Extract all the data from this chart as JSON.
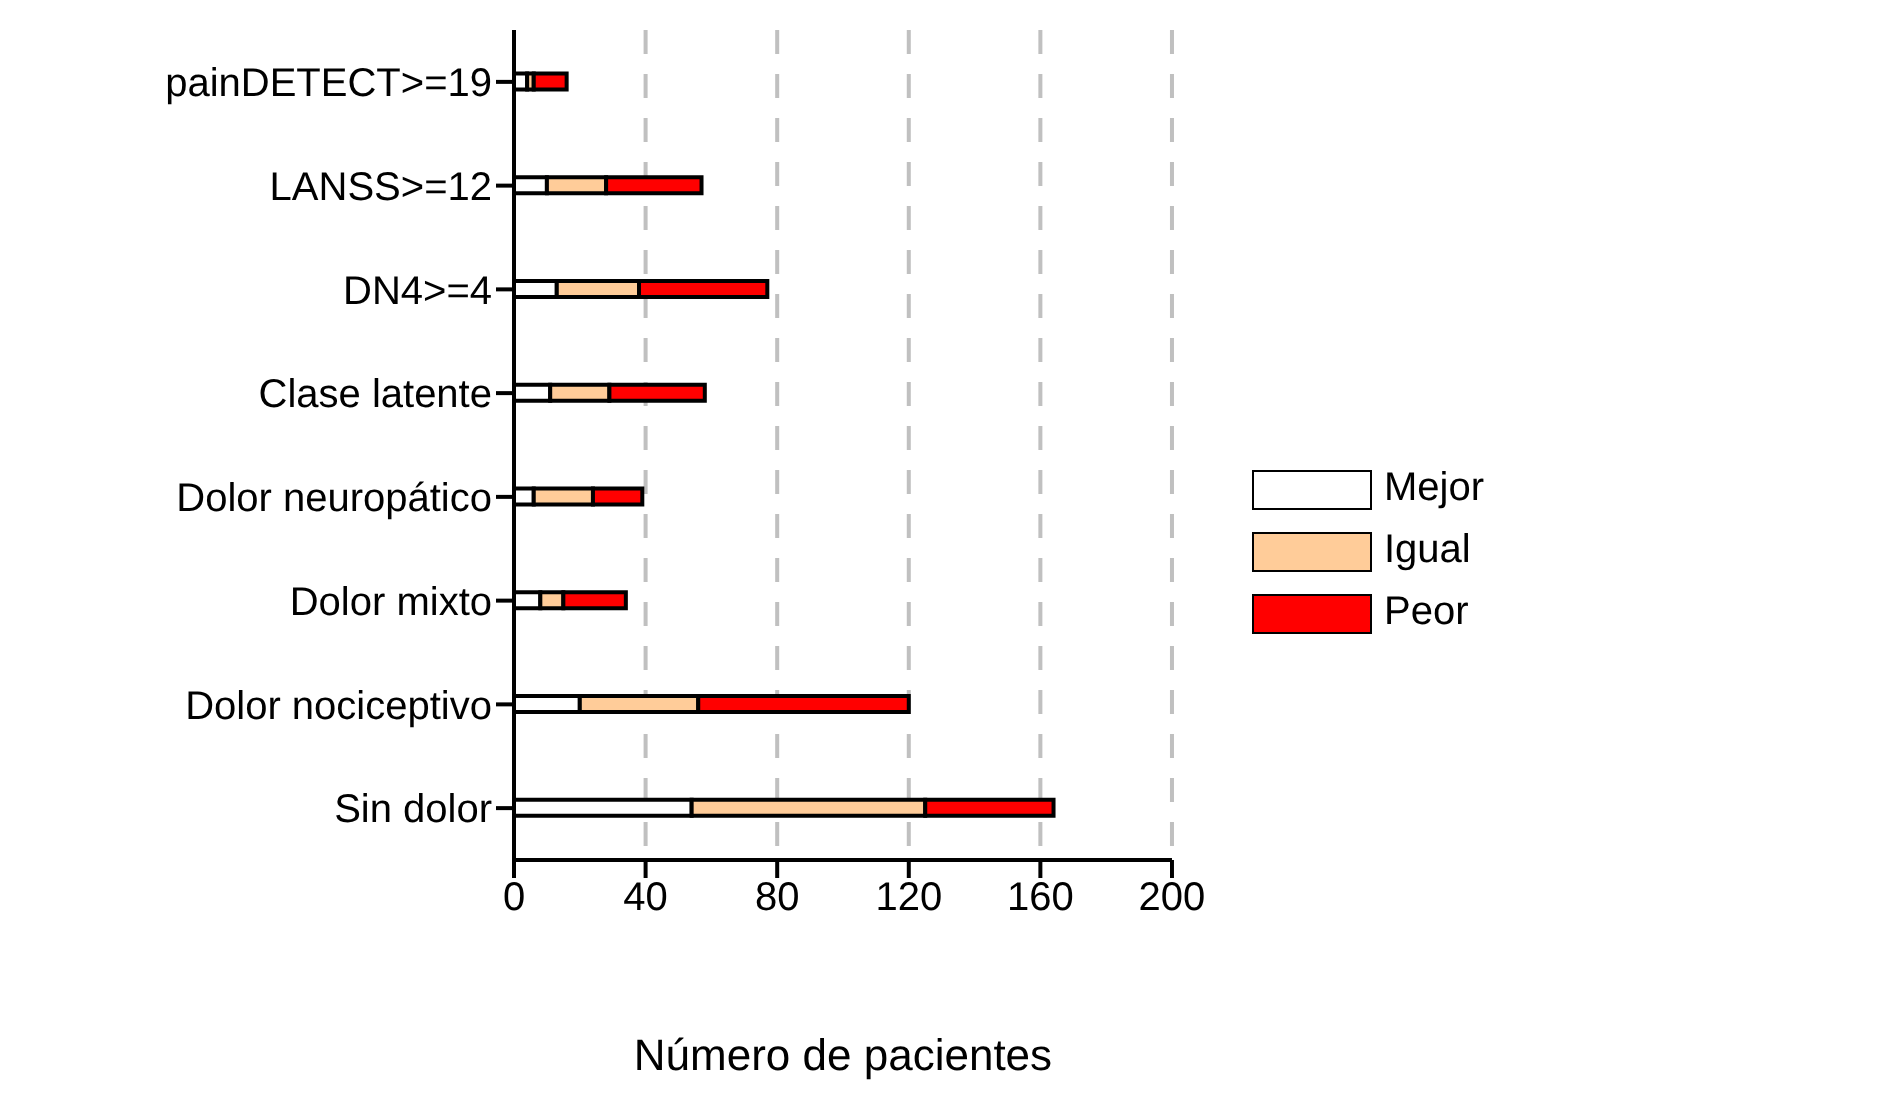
{
  "chart_data": {
    "type": "bar",
    "orientation": "horizontal",
    "stacked": true,
    "categories": [
      "painDETECT>=19",
      "LANSS>=12",
      "DN4>=4",
      "Clase latente",
      "Dolor neuropático",
      "Dolor mixto",
      "Dolor nociceptivo",
      "Sin dolor"
    ],
    "series": [
      {
        "name": "Mejor",
        "color": "#ffffff",
        "values": [
          4,
          10,
          13,
          11,
          6,
          8,
          20,
          54
        ]
      },
      {
        "name": "Igual",
        "color": "#ffcc99",
        "values": [
          2,
          18,
          25,
          18,
          18,
          7,
          36,
          71
        ]
      },
      {
        "name": "Peor",
        "color": "#ff0000",
        "values": [
          10,
          29,
          39,
          29,
          15,
          19,
          64,
          39
        ]
      }
    ],
    "xlabel": "Número de pacientes",
    "xlim": [
      0,
      200
    ],
    "xticks": [
      0,
      40,
      80,
      120,
      160,
      200
    ],
    "grid": "x",
    "legend": "right"
  }
}
